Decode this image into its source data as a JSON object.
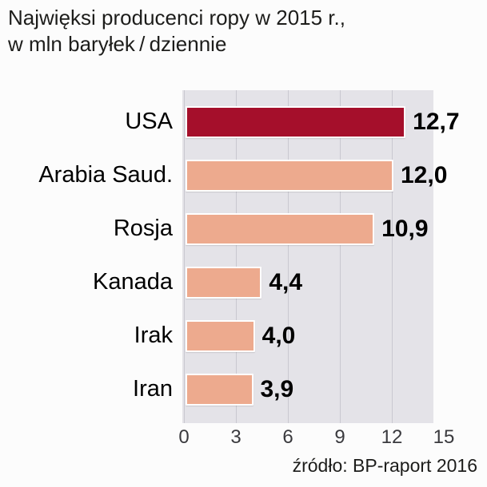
{
  "title": {
    "line1": "Najwięksi producenci ropy w 2015 r.,",
    "line2": "w mln baryłek / dziennie"
  },
  "source": "źródło: BP-raport 2016",
  "chart_data": {
    "type": "bar",
    "orientation": "horizontal",
    "title": "Najwięksi producenci ropy w 2015 r., w mln baryłek/dziennie",
    "categories": [
      "USA",
      "Arabia Saud.",
      "Rosja",
      "Kanada",
      "Irak",
      "Iran"
    ],
    "values": [
      12.7,
      12.0,
      10.9,
      4.4,
      4.0,
      3.9
    ],
    "value_labels": [
      "12,7",
      "12,0",
      "10,9",
      "4,4",
      "4,0",
      "3,9"
    ],
    "x_ticks": [
      "0",
      "3",
      "6",
      "9",
      "12",
      "15"
    ],
    "xlim": [
      0,
      15
    ],
    "grid": true,
    "highlight_index": 0,
    "highlight_color": "#a50f2b",
    "bar_color": "#edaa8e",
    "plot_background": "#e4e3e8",
    "legend": "none"
  }
}
